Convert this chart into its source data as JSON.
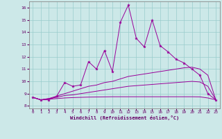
{
  "x_data": [
    0,
    1,
    2,
    3,
    4,
    5,
    6,
    7,
    8,
    9,
    10,
    11,
    12,
    13,
    14,
    15,
    16,
    17,
    18,
    19,
    20,
    21,
    22,
    23
  ],
  "main_line": [
    8.7,
    8.5,
    8.5,
    8.8,
    9.9,
    9.6,
    9.7,
    11.6,
    11.0,
    12.5,
    10.8,
    14.8,
    16.2,
    13.5,
    12.8,
    15.0,
    12.9,
    12.4,
    11.8,
    11.5,
    11.0,
    10.5,
    9.0,
    8.5
  ],
  "line2": [
    8.7,
    8.5,
    8.6,
    8.8,
    9.0,
    9.2,
    9.4,
    9.6,
    9.7,
    9.9,
    10.0,
    10.2,
    10.4,
    10.5,
    10.6,
    10.7,
    10.8,
    10.9,
    11.0,
    11.1,
    11.15,
    11.0,
    10.5,
    8.5
  ],
  "line3": [
    8.7,
    8.5,
    8.6,
    8.7,
    8.85,
    8.9,
    9.0,
    9.1,
    9.2,
    9.3,
    9.4,
    9.5,
    9.6,
    9.65,
    9.7,
    9.75,
    9.8,
    9.85,
    9.9,
    9.95,
    10.0,
    9.95,
    9.6,
    8.5
  ],
  "line4": [
    8.7,
    8.5,
    8.55,
    8.6,
    8.65,
    8.68,
    8.7,
    8.72,
    8.73,
    8.74,
    8.75,
    8.75,
    8.75,
    8.75,
    8.75,
    8.75,
    8.75,
    8.75,
    8.75,
    8.75,
    8.75,
    8.74,
    8.65,
    8.5
  ],
  "ylim": [
    7.8,
    16.5
  ],
  "xlim": [
    -0.5,
    23.5
  ],
  "yticks": [
    8,
    9,
    10,
    11,
    12,
    13,
    14,
    15,
    16
  ],
  "xticks": [
    0,
    1,
    2,
    3,
    4,
    5,
    6,
    7,
    8,
    9,
    10,
    11,
    12,
    13,
    14,
    15,
    16,
    17,
    18,
    19,
    20,
    21,
    22,
    23
  ],
  "line_color": "#990099",
  "bg_color": "#cce8e8",
  "grid_color": "#99cccc",
  "xlabel": "Windchill (Refroidissement éolien,°C)",
  "xlabel_color": "#660066",
  "tick_color": "#660066",
  "axis_color": "#888888"
}
